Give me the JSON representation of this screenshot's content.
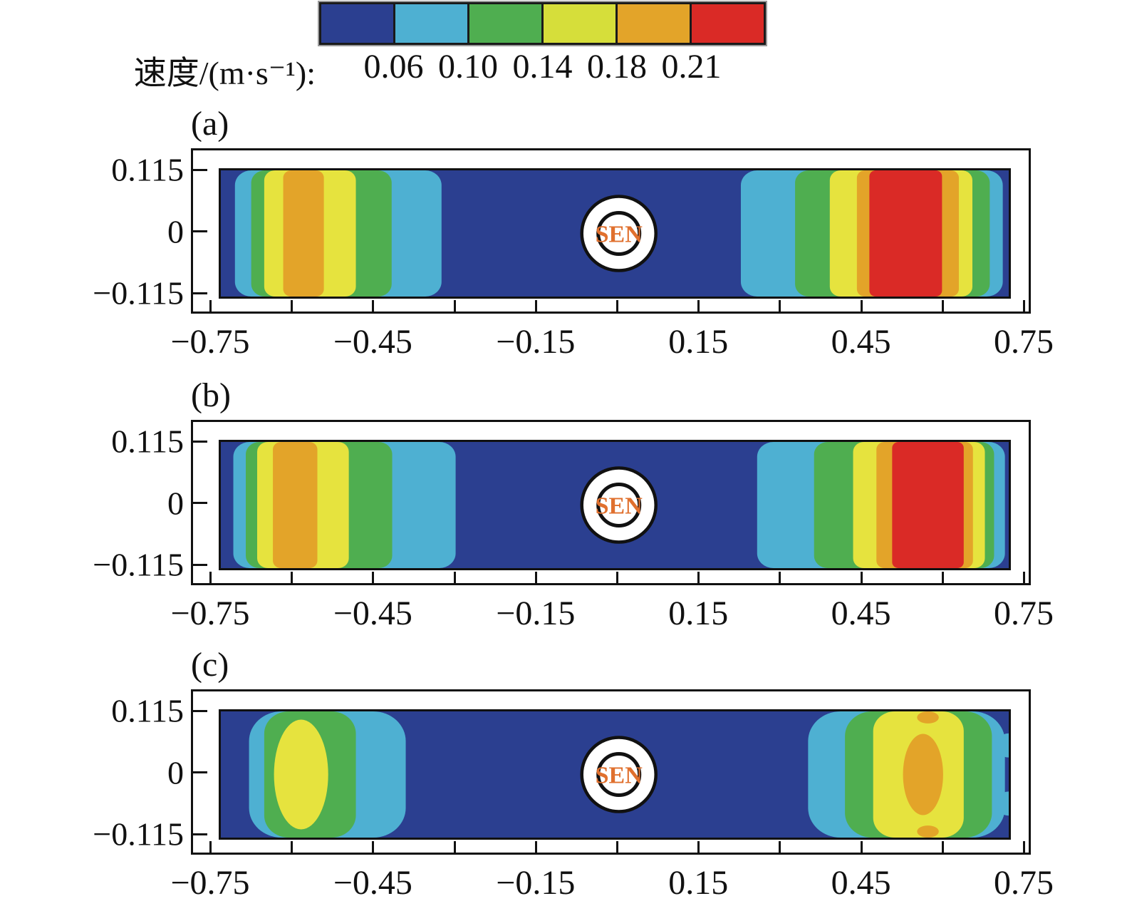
{
  "figure": {
    "colorbar": {
      "label": "速度/(m·s⁻¹):",
      "tick_labels": [
        "0.06",
        "0.10",
        "0.14",
        "0.18",
        "0.21"
      ],
      "segment_colors": [
        "darkblue",
        "lightblue",
        "green",
        "cbyellow",
        "orange",
        "red"
      ]
    }
  },
  "palette": {
    "darkblue": "#2b3f90",
    "lightblue": "#4eb0d2",
    "green": "#4fae50",
    "cbyellow": "#d6de3a",
    "yellow": "#e6e33e",
    "orange": "#e3a429",
    "red": "#da2a26",
    "sen_text": "#e0702e",
    "line": "#111111"
  },
  "chart_data": {
    "type": "heatmap",
    "colorbar_levels": [
      0.06,
      0.1,
      0.14,
      0.18,
      0.21
    ],
    "colorbar_unit": "m·s⁻¹",
    "xlim": [
      -0.75,
      0.75
    ],
    "ylim": [
      -0.115,
      0.115
    ],
    "x_minor_step": 0.15,
    "panels": [
      {
        "label": "(a)",
        "x_labeled_ticks": [
          {
            "v": -0.75,
            "t": "−0.75"
          },
          {
            "v": -0.45,
            "t": "−0.45"
          },
          {
            "v": -0.15,
            "t": "−0.15"
          },
          {
            "v": 0.15,
            "t": "0.15"
          },
          {
            "v": 0.45,
            "t": "0.45"
          },
          {
            "v": 0.75,
            "t": "0.75"
          }
        ],
        "y_labeled_ticks": [
          {
            "v": 0.115,
            "t": "0.115"
          },
          {
            "v": 0,
            "t": "0"
          },
          {
            "v": -0.115,
            "t": "−0.115"
          }
        ],
        "sen": {
          "label": "SEN",
          "x": 0,
          "y": 0
        },
        "regions": [
          {
            "shape": "band",
            "color": "lightblue",
            "x1": -0.708,
            "x2": -0.327,
            "r": 0.03
          },
          {
            "shape": "band",
            "color": "green",
            "x1": -0.678,
            "x2": -0.419,
            "r": 0.025
          },
          {
            "shape": "band",
            "color": "yellow",
            "x1": -0.654,
            "x2": -0.485,
            "r": 0.02
          },
          {
            "shape": "band",
            "color": "orange",
            "x1": -0.619,
            "x2": -0.544,
            "r": 0.015
          },
          {
            "shape": "band",
            "color": "lightblue",
            "x1": 0.225,
            "x2": 0.708,
            "r": 0.03
          },
          {
            "shape": "band",
            "color": "green",
            "x1": 0.325,
            "x2": 0.684,
            "r": 0.025
          },
          {
            "shape": "band",
            "color": "yellow",
            "x1": 0.389,
            "x2": 0.652,
            "r": 0.02
          },
          {
            "shape": "band",
            "color": "orange",
            "x1": 0.439,
            "x2": 0.627,
            "r": 0.015
          },
          {
            "shape": "band",
            "color": "red",
            "x1": 0.462,
            "x2": 0.596,
            "r": 0.012
          }
        ]
      },
      {
        "label": "(b)",
        "x_labeled_ticks": [
          {
            "v": -0.75,
            "t": "−0.75"
          },
          {
            "v": -0.45,
            "t": "−0.45"
          },
          {
            "v": -0.15,
            "t": "−0.15"
          },
          {
            "v": 0.15,
            "t": "0.15"
          },
          {
            "v": 0.45,
            "t": "0.45"
          },
          {
            "v": 0.75,
            "t": "0.75"
          }
        ],
        "y_labeled_ticks": [
          {
            "v": 0.115,
            "t": "0.115"
          },
          {
            "v": 0,
            "t": "0"
          },
          {
            "v": -0.115,
            "t": "−0.115"
          }
        ],
        "sen": {
          "label": "SEN",
          "x": 0,
          "y": 0
        },
        "regions": [
          {
            "shape": "band",
            "color": "lightblue",
            "x1": -0.711,
            "x2": -0.301,
            "r": 0.03
          },
          {
            "shape": "band",
            "color": "green",
            "x1": -0.688,
            "x2": -0.418,
            "r": 0.025
          },
          {
            "shape": "band",
            "color": "yellow",
            "x1": -0.667,
            "x2": -0.498,
            "r": 0.02
          },
          {
            "shape": "band",
            "color": "orange",
            "x1": -0.638,
            "x2": -0.556,
            "r": 0.015
          },
          {
            "shape": "band",
            "color": "lightblue",
            "x1": 0.255,
            "x2": 0.712,
            "r": 0.03
          },
          {
            "shape": "band",
            "color": "green",
            "x1": 0.36,
            "x2": 0.692,
            "r": 0.025
          },
          {
            "shape": "band",
            "color": "yellow",
            "x1": 0.432,
            "x2": 0.675,
            "r": 0.02
          },
          {
            "shape": "band",
            "color": "orange",
            "x1": 0.475,
            "x2": 0.653,
            "r": 0.015
          },
          {
            "shape": "band",
            "color": "red",
            "x1": 0.504,
            "x2": 0.636,
            "r": 0.012
          }
        ]
      },
      {
        "label": "(c)",
        "x_labeled_ticks": [
          {
            "v": -0.75,
            "t": "−0.75"
          },
          {
            "v": -0.45,
            "t": "−0.45"
          },
          {
            "v": -0.15,
            "t": "−0.15"
          },
          {
            "v": 0.15,
            "t": "0.15"
          },
          {
            "v": 0.45,
            "t": "0.45"
          },
          {
            "v": 0.75,
            "t": "0.75"
          }
        ],
        "y_labeled_ticks": [
          {
            "v": 0.115,
            "t": "0.115"
          },
          {
            "v": 0,
            "t": "0"
          },
          {
            "v": -0.115,
            "t": "−0.115"
          }
        ],
        "sen": {
          "label": "SEN",
          "x": 0,
          "y": 0
        },
        "regions": [
          {
            "shape": "band",
            "color": "lightblue",
            "x1": -0.682,
            "x2": -0.393,
            "r": 0.06
          },
          {
            "shape": "band",
            "color": "green",
            "x1": -0.654,
            "x2": -0.485,
            "r": 0.045
          },
          {
            "shape": "ellipse",
            "color": "yellow",
            "cx": -0.586,
            "cy": 0,
            "rx": 0.05,
            "ry": 0.1
          },
          {
            "shape": "band",
            "color": "lightblue",
            "x1": 0.349,
            "x2": 0.712,
            "r": 0.06
          },
          {
            "shape": "band",
            "color": "green",
            "x1": 0.417,
            "x2": 0.688,
            "r": 0.05
          },
          {
            "shape": "band",
            "color": "yellow",
            "x1": 0.469,
            "x2": 0.636,
            "r": 0.04
          },
          {
            "shape": "ellipse",
            "color": "orange",
            "cx": 0.561,
            "cy": 0,
            "rx": 0.037,
            "ry": 0.074
          },
          {
            "shape": "ellipse",
            "color": "orange",
            "cx": 0.57,
            "cy": 0.104,
            "rx": 0.02,
            "ry": 0.011
          },
          {
            "shape": "ellipse",
            "color": "orange",
            "cx": 0.57,
            "cy": -0.104,
            "rx": 0.02,
            "ry": 0.011
          },
          {
            "shape": "ellipse",
            "color": "lightblue",
            "cx": 0.719,
            "cy": 0.053,
            "rx": 0.024,
            "ry": 0.022
          },
          {
            "shape": "ellipse",
            "color": "lightblue",
            "cx": 0.719,
            "cy": -0.053,
            "rx": 0.024,
            "ry": 0.022
          }
        ]
      }
    ]
  }
}
